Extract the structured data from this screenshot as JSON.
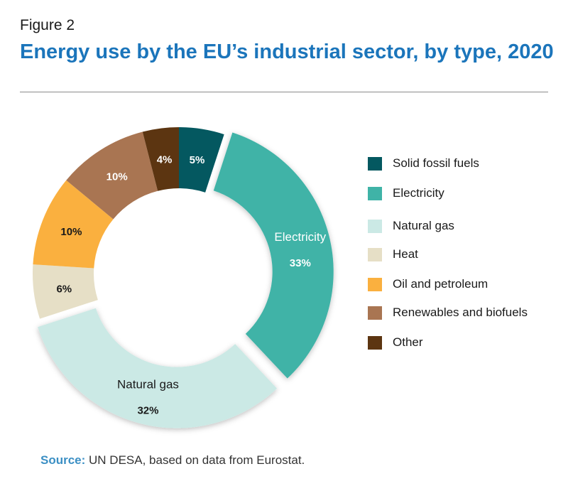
{
  "figure_label": "Figure 2",
  "title": "Energy use by the EU’s industrial sector, by type, 2020",
  "source": {
    "label": "Source:",
    "text": " UN DESA, based on data from Eurostat."
  },
  "chart_data": {
    "type": "pie",
    "variant": "donut",
    "title": "Energy use by the EU’s industrial sector, by type, 2020",
    "unit": "%",
    "legend_position": "right",
    "slices": [
      {
        "name": "Solid fossil fuels",
        "value": 5,
        "label": "5%",
        "color": "#045860",
        "inside_name": "",
        "exploded": false
      },
      {
        "name": "Electricity",
        "value": 33,
        "label": "33%",
        "color": "#3fb3a7",
        "inside_name": "Electricity",
        "exploded": true
      },
      {
        "name": "Natural gas",
        "value": 32,
        "label": "32%",
        "color": "#cbe9e5",
        "inside_name": "Natural gas",
        "exploded": true
      },
      {
        "name": "Heat",
        "value": 6,
        "label": "6%",
        "color": "#e6dfc6",
        "inside_name": "",
        "exploded": false
      },
      {
        "name": "Oil and petroleum",
        "value": 10,
        "label": "10%",
        "color": "#fab03f",
        "inside_name": "",
        "exploded": false
      },
      {
        "name": "Renewables and biofuels",
        "value": 10,
        "label": "10%",
        "color": "#a97552",
        "inside_name": "",
        "exploded": false
      },
      {
        "name": "Other",
        "value": 4,
        "label": "4%",
        "color": "#5c3511",
        "inside_name": "",
        "exploded": false
      }
    ],
    "legend": [
      "Solid fossil fuels",
      "Electricity",
      "Natural gas",
      "Heat",
      "Oil and petroleum",
      "Renewables and biofuels",
      "Other"
    ]
  }
}
